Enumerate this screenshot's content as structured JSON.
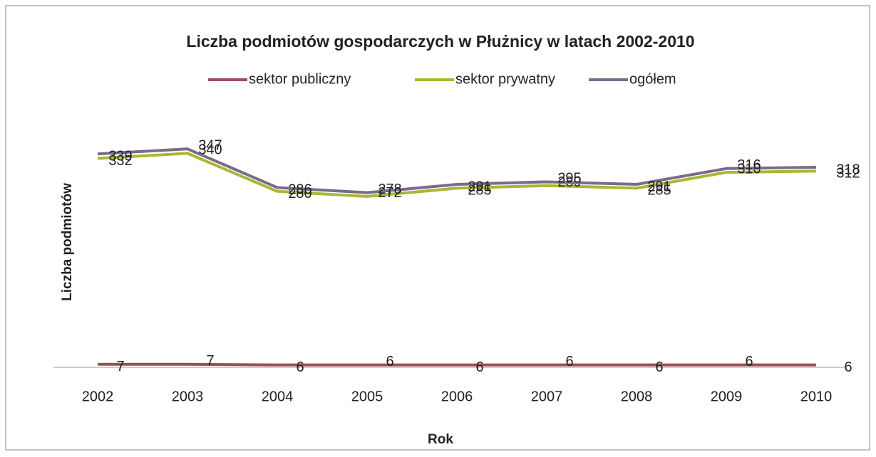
{
  "chart_data": {
    "type": "line",
    "title": "Liczba podmiotów gospodarczych w Płużnicy w latach 2002-2010",
    "x_label": "Rok",
    "y_label": "Liczba podmiotów",
    "categories": [
      "2002",
      "2003",
      "2004",
      "2005",
      "2006",
      "2007",
      "2008",
      "2009",
      "2010"
    ],
    "ylim": [
      0,
      400
    ],
    "series": [
      {
        "name": "sektor publiczny",
        "color": "#a04c5a",
        "values": [
          7,
          7,
          6,
          6,
          6,
          6,
          6,
          6,
          6
        ]
      },
      {
        "name": "sektor prywatny",
        "color": "#a9b832",
        "values": [
          332,
          340,
          280,
          272,
          285,
          289,
          285,
          310,
          312
        ]
      },
      {
        "name": "ogółem",
        "color": "#7b6a8a",
        "values": [
          339,
          347,
          286,
          278,
          291,
          295,
          291,
          316,
          318
        ]
      }
    ]
  }
}
